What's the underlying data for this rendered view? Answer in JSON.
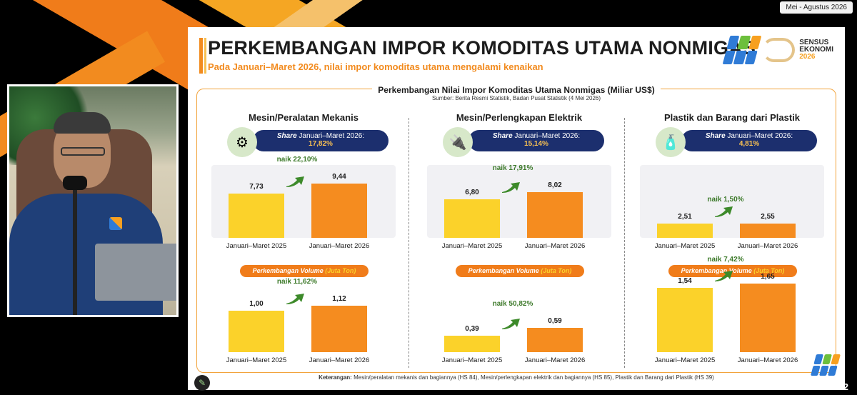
{
  "date_badge": "Mei - Agustus 2026",
  "page_number": "32",
  "slide": {
    "title": "PERKEMBANGAN IMPOR KOMODITAS UTAMA NONMIGAS",
    "subtitle": "Pada Januari–Maret 2026, nilai impor komoditas utama mengalami kenaikan",
    "brand": {
      "line1": "SENSUS",
      "line2": "EKONOMI",
      "line3": "2026"
    },
    "chart_title": "Perkembangan Nilai Impor Komoditas Utama Nonmigas (Miliar US$)",
    "source": "Sumber: Berita Resmi Statistik, Badan Pusat Statistik (4 Mei 2026)",
    "note_label": "Keterangan:",
    "note_text": " Mesin/peralatan mekanis dan bagiannya (HS 84), Mesin/perlengkapan elektrik dan bagiannya (HS 85), Plastik dan Barang dari Plastik (HS 39)",
    "share_prefix": "Share",
    "share_period": " Januari–Maret 2026:",
    "volume_label": "Perkembangan Volume",
    "volume_unit": "(Juta Ton)"
  },
  "chart_data": [
    {
      "type": "bar",
      "title": "Mesin/Peralatan Mekanis",
      "share": "17,82%",
      "value": {
        "categories": [
          "Januari–Maret 2025",
          "Januari–Maret 2026"
        ],
        "values": [
          7.73,
          9.44
        ],
        "labels": [
          "7,73",
          "9,44"
        ],
        "change": "naik 22,10%"
      },
      "volume": {
        "categories": [
          "Januari–Maret 2025",
          "Januari–Maret 2026"
        ],
        "values": [
          1.0,
          1.12
        ],
        "labels": [
          "1,00",
          "1,12"
        ],
        "change": "naik 11,62%"
      },
      "icon": "gear-icon"
    },
    {
      "type": "bar",
      "title": "Mesin/Perlengkapan Elektrik",
      "share": "15,14%",
      "value": {
        "categories": [
          "Januari–Maret 2025",
          "Januari–Maret 2026"
        ],
        "values": [
          6.8,
          8.02
        ],
        "labels": [
          "6,80",
          "8,02"
        ],
        "change": "naik 17,91%"
      },
      "volume": {
        "categories": [
          "Januari–Maret 2025",
          "Januari–Maret 2026"
        ],
        "values": [
          0.39,
          0.59
        ],
        "labels": [
          "0,39",
          "0,59"
        ],
        "change": "naik 50,82%"
      },
      "icon": "plug-icon"
    },
    {
      "type": "bar",
      "title": "Plastik dan Barang dari Plastik",
      "share": "4,81%",
      "value": {
        "categories": [
          "Januari–Maret 2025",
          "Januari–Maret 2026"
        ],
        "values": [
          2.51,
          2.55
        ],
        "labels": [
          "2,51",
          "2,55"
        ],
        "change": "naik 1,50%"
      },
      "volume": {
        "categories": [
          "Januari–Maret 2025",
          "Januari–Maret 2026"
        ],
        "values": [
          1.54,
          1.65
        ],
        "labels": [
          "1,54",
          "1,65"
        ],
        "change": "naik 7,42%"
      },
      "icon": "plastic-items-icon"
    }
  ],
  "colors": {
    "bar_2025": "#fbd22a",
    "bar_2026": "#f58c1f",
    "accent": "#f28b1f",
    "navy": "#1c2f6e"
  }
}
